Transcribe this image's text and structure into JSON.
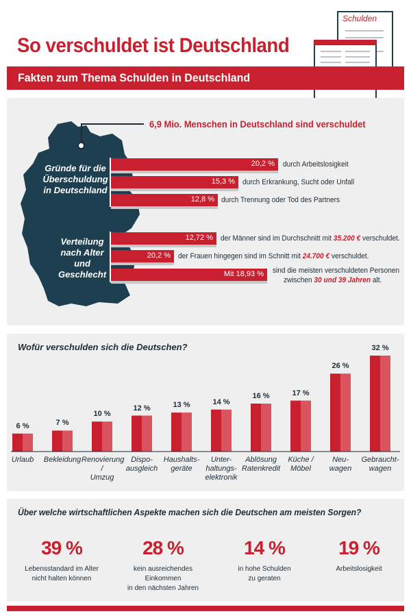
{
  "header": {
    "title": "So verschuldet ist Deutschland",
    "subtitle": "Fakten zum Thema Schulden in Deutschland",
    "doc_tab_label": "Schulden"
  },
  "overview": {
    "headline": "6,9 Mio. Menschen in Deutschland sind verschuldet",
    "reasons": {
      "label": "Gründe für die Überschuldung in Deutschland",
      "items": [
        {
          "value": "20,2 %",
          "desc": "durch Arbeitslosigkeit"
        },
        {
          "value": "15,3 %",
          "desc": "durch Erkrankung, Sucht oder Unfall"
        },
        {
          "value": "12,8 %",
          "desc": "durch Trennung oder Tod des Partners"
        }
      ]
    },
    "distribution": {
      "label": "Verteilung nach Alter und Geschlecht",
      "items": [
        {
          "value": "12,72 %",
          "desc": "der Männer sind im Durchschnitt  mit ",
          "highlight": "35.200 €",
          "desc_after": " verschuldet."
        },
        {
          "value": "20,2 %",
          "desc": "der Frauen hingegen sind im Schnitt mit ",
          "highlight": "24.700 €",
          "desc_after": " verschuldet."
        },
        {
          "value": "Mit 18,93 %",
          "desc": "sind die meisten verschuldeten Personen",
          "desc_line2_pre": "zwischen ",
          "highlight": "30 und 39 Jahren",
          "desc_after": " alt."
        }
      ]
    }
  },
  "chart_data": {
    "type": "bar",
    "title": "Wofür verschulden sich die Deutschen?",
    "categories": [
      "Urlaub",
      "Bekleidung",
      "Renovierung / Umzug",
      "Dispo-ausgleich",
      "Haushalts-geräte",
      "Unter-haltungs-elektronik",
      "Ablösung Ratenkredit",
      "Küche / Möbel",
      "Neu-wagen",
      "Gebraucht-wagen"
    ],
    "category_lines": [
      [
        "Urlaub"
      ],
      [
        "Bekleidung"
      ],
      [
        "Renovierung /",
        "Umzug"
      ],
      [
        "Dispo-",
        "ausgleich"
      ],
      [
        "Haushalts-",
        "geräte"
      ],
      [
        "Unter-",
        "haltungs-",
        "elektronik"
      ],
      [
        "Ablösung",
        "Ratenkredit"
      ],
      [
        "Küche /",
        "Möbel"
      ],
      [
        "Neu-",
        "wagen"
      ],
      [
        "Gebraucht-",
        "wagen"
      ]
    ],
    "values": [
      6,
      7,
      10,
      12,
      13,
      14,
      16,
      17,
      26,
      32
    ],
    "value_labels": [
      "6 %",
      "7 %",
      "10 %",
      "12 %",
      "13 %",
      "14 %",
      "16 %",
      "17 %",
      "26 %",
      "32 %"
    ],
    "ylim": [
      0,
      32
    ],
    "grid": false,
    "colors": {
      "bar_dark": "#c8202e",
      "bar_light": "#d9545e"
    }
  },
  "worries": {
    "title": "Über welche wirtschaftlichen Aspekte machen sich die Deutschen am meisten Sorgen?",
    "items": [
      {
        "value": "39 %",
        "label_line1": "Lebensstandard im Alter",
        "label_line2": "nicht halten können"
      },
      {
        "value": "28 %",
        "label_line1": "kein ausreichendes Einkommen",
        "label_line2": "in den nächsten Jahren"
      },
      {
        "value": "14 %",
        "label_line1": "in hohe Schulden",
        "label_line2": "zu geraten"
      },
      {
        "value": "19 %",
        "label_line1": "Arbeitslosigkeit",
        "label_line2": ""
      }
    ]
  },
  "colors": {
    "accent": "#c8202e",
    "map": "#1d3f4f",
    "panel": "#efefef"
  }
}
